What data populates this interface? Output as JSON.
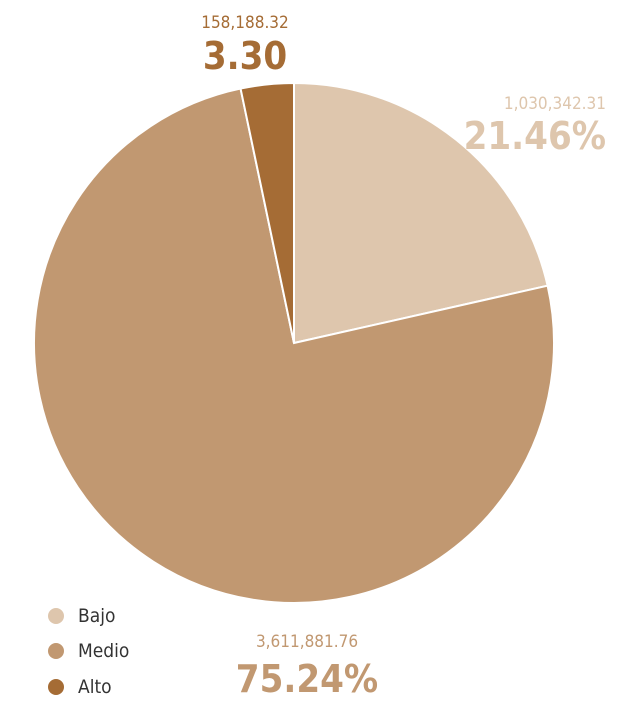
{
  "chart_data": {
    "type": "pie",
    "slices": [
      {
        "name": "Bajo",
        "value": 1030342.31,
        "value_label": "1,030,342.31",
        "percent_label": "21.46%",
        "color": "#dec6ad"
      },
      {
        "name": "Medio",
        "value": 3611881.76,
        "value_label": "3,611,881.76",
        "percent_label": "75.24%",
        "color": "#c19871"
      },
      {
        "name": "Alto",
        "value": 158188.32,
        "value_label": "158,188.32",
        "percent_label": "3.30",
        "color": "#a56c35"
      }
    ],
    "legend_position": "bottom-left",
    "start_angle_deg": 0,
    "direction": "clockwise"
  }
}
